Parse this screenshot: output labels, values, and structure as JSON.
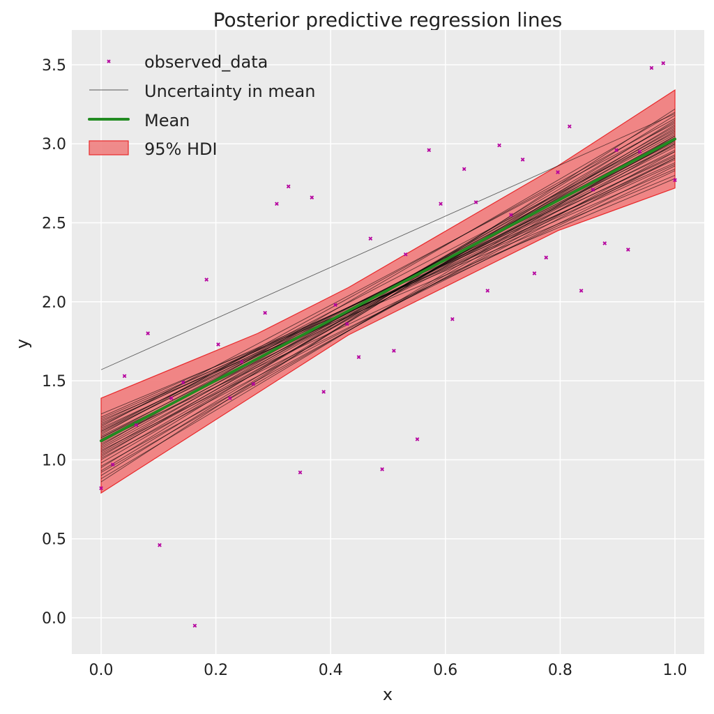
{
  "chart_data": {
    "type": "line",
    "title": "Posterior predictive regression lines",
    "xlabel": "x",
    "ylabel": "y",
    "xlim": [
      -0.05,
      1.05
    ],
    "ylim": [
      -0.23,
      3.68
    ],
    "xticks": [
      "0.0",
      "0.2",
      "0.4",
      "0.6",
      "0.8",
      "1.0"
    ],
    "yticks": [
      "0.0",
      "0.5",
      "1.0",
      "1.5",
      "2.0",
      "2.5",
      "3.0",
      "3.5"
    ],
    "grid": true,
    "legend_position": "top-left",
    "legend": [
      "observed_data",
      "Uncertainty in mean",
      "Mean",
      "95% HDI"
    ],
    "colors": {
      "observed": "#b5009e",
      "uncertainty": "#000000",
      "mean": "#228b22",
      "hdi": "#f08080",
      "hdi_edge": "#e8282a",
      "background": "#ebebeb"
    },
    "observed_data": {
      "x": [
        0.0,
        0.0204,
        0.0408,
        0.0612,
        0.0816,
        0.102,
        0.1224,
        0.1429,
        0.1633,
        0.1837,
        0.2041,
        0.2245,
        0.2449,
        0.2653,
        0.2857,
        0.3061,
        0.3265,
        0.3469,
        0.3673,
        0.3878,
        0.4082,
        0.4286,
        0.449,
        0.4694,
        0.4898,
        0.5102,
        0.5306,
        0.551,
        0.5714,
        0.5918,
        0.6122,
        0.6327,
        0.6531,
        0.6735,
        0.6939,
        0.7143,
        0.7347,
        0.7551,
        0.7755,
        0.7959,
        0.8163,
        0.8367,
        0.8571,
        0.8776,
        0.898,
        0.9184,
        0.9388,
        0.9592,
        0.9796,
        1.0
      ],
      "y": [
        0.82,
        0.97,
        1.53,
        1.22,
        1.8,
        0.46,
        1.39,
        1.49,
        -0.05,
        2.14,
        1.73,
        1.39,
        1.62,
        1.48,
        1.93,
        2.62,
        2.73,
        0.92,
        2.66,
        1.43,
        1.98,
        1.86,
        1.65,
        2.4,
        0.94,
        1.69,
        2.3,
        1.13,
        2.96,
        2.62,
        1.89,
        2.84,
        2.63,
        2.07,
        2.99,
        2.55,
        2.9,
        2.18,
        2.28,
        2.82,
        3.11,
        2.07,
        2.71,
        2.37,
        2.96,
        2.33,
        2.95,
        3.48,
        3.51,
        2.77
      ]
    },
    "mean_line": {
      "x": [
        0,
        1
      ],
      "y": [
        1.12,
        3.03
      ]
    },
    "hdi_95": {
      "upper": {
        "x": [
          0,
          0.273,
          0.431,
          0.796,
          1.0
        ],
        "y": [
          1.39,
          1.8,
          2.09,
          2.86,
          3.34
        ]
      },
      "lower": {
        "x": [
          0,
          0.431,
          0.796,
          1.0
        ],
        "y": [
          0.79,
          1.79,
          2.45,
          2.72
        ]
      }
    },
    "uncertainty_lines": {
      "x": [
        0,
        1
      ],
      "y": [
        [
          1.57,
          3.19
        ],
        [
          0.86,
          3.22
        ],
        [
          0.9,
          3.15
        ],
        [
          0.93,
          3.12
        ],
        [
          0.95,
          3.18
        ],
        [
          0.98,
          3.1
        ],
        [
          1.0,
          3.08
        ],
        [
          1.02,
          3.14
        ],
        [
          1.04,
          3.05
        ],
        [
          1.05,
          3.11
        ],
        [
          1.07,
          3.02
        ],
        [
          1.08,
          3.09
        ],
        [
          1.1,
          3.0
        ],
        [
          1.11,
          3.06
        ],
        [
          1.13,
          2.98
        ],
        [
          1.14,
          3.04
        ],
        [
          1.15,
          2.96
        ],
        [
          1.17,
          3.01
        ],
        [
          1.18,
          2.93
        ],
        [
          1.19,
          2.99
        ],
        [
          1.2,
          2.9
        ],
        [
          1.22,
          2.95
        ],
        [
          1.23,
          2.87
        ],
        [
          1.24,
          2.92
        ],
        [
          1.26,
          2.84
        ],
        [
          1.27,
          2.88
        ],
        [
          1.29,
          2.8
        ],
        [
          1.21,
          3.13
        ],
        [
          1.16,
          3.16
        ],
        [
          1.09,
          3.2
        ],
        [
          0.96,
          2.95
        ],
        [
          1.01,
          2.91
        ],
        [
          1.06,
          2.86
        ],
        [
          0.92,
          3.0
        ],
        [
          1.12,
          2.83
        ],
        [
          1.25,
          2.78
        ],
        [
          0.88,
          3.05
        ],
        [
          1.03,
          3.02
        ],
        [
          1.18,
          3.07
        ],
        [
          1.14,
          2.91
        ]
      ]
    }
  }
}
